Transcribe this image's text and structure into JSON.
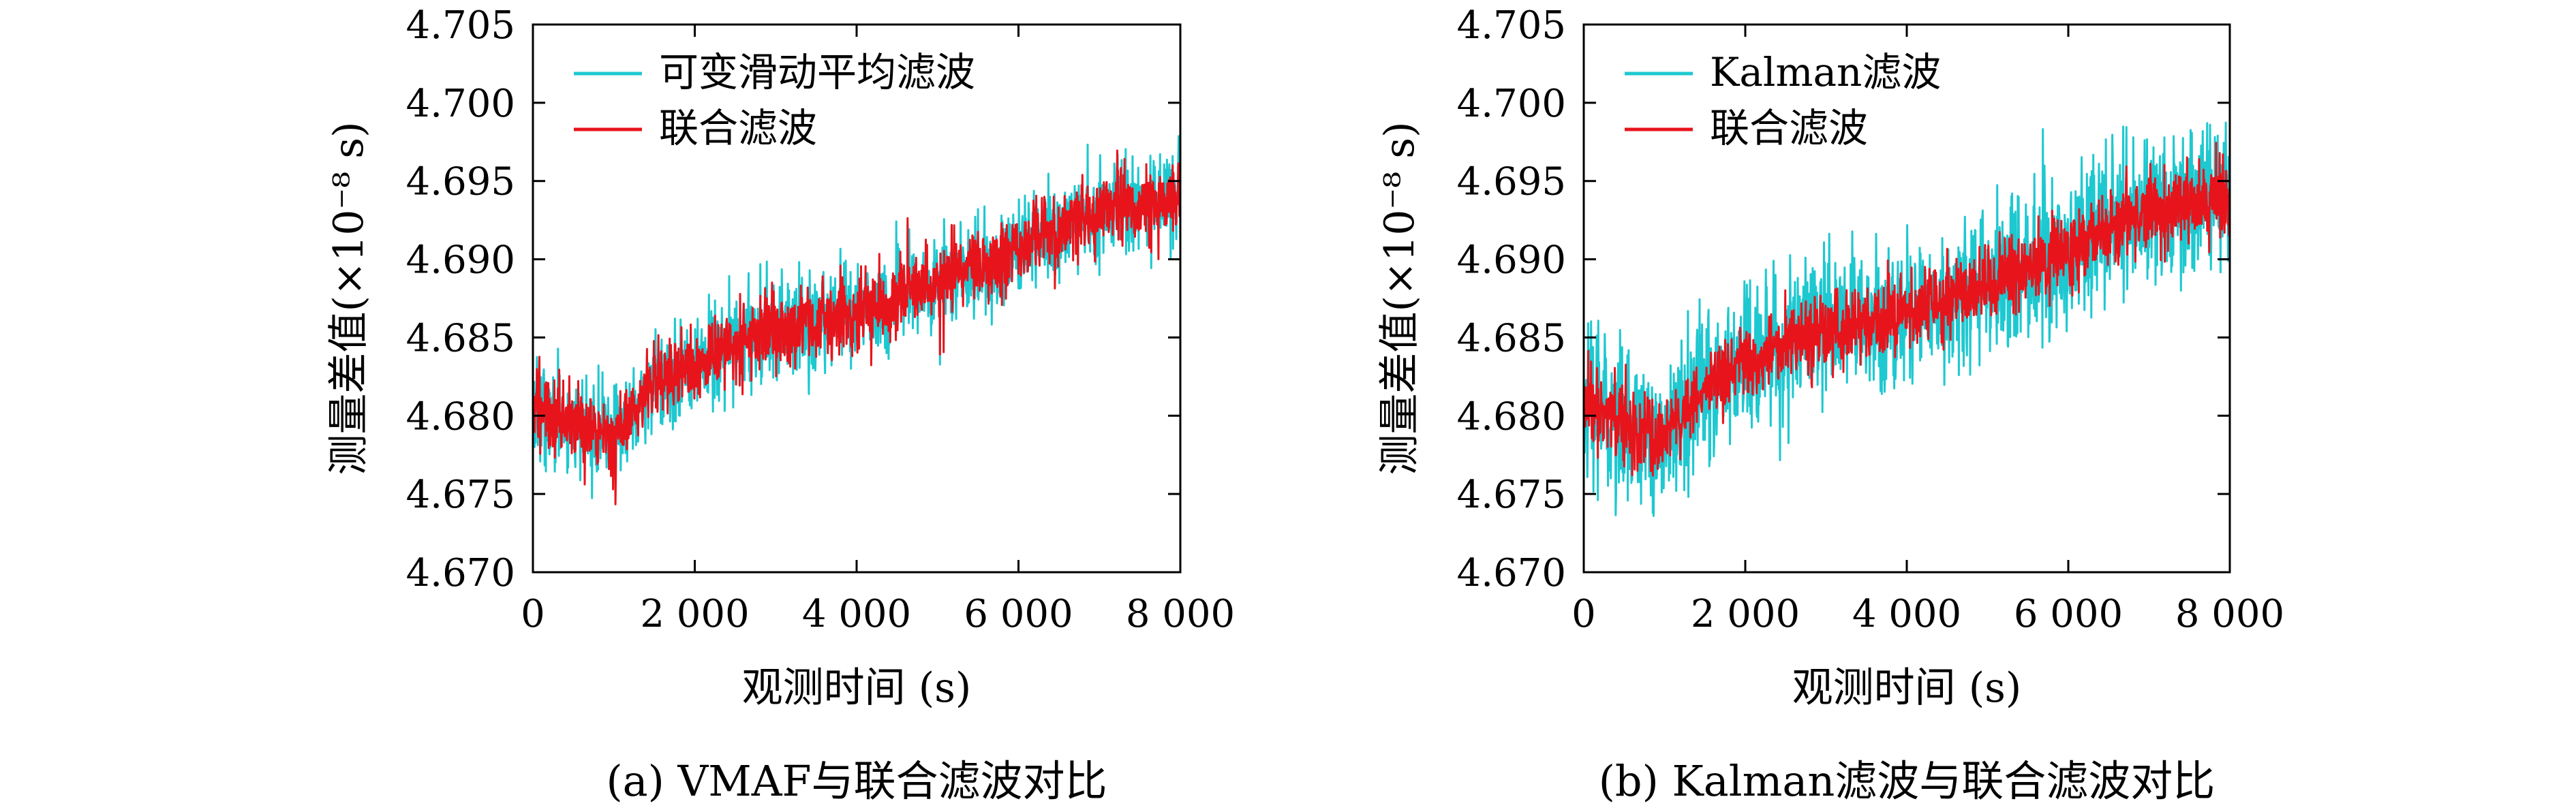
{
  "chart_data": [
    {
      "type": "line",
      "caption": "(a) VMAF与联合滤波对比",
      "xlabel": "观测时间 (s)",
      "ylabel": "测量差值(×10⁻⁸ s)",
      "xlim": [
        0,
        8000
      ],
      "ylim": [
        4.67,
        4.705
      ],
      "xticks": [
        0,
        2000,
        4000,
        6000,
        8000
      ],
      "xtick_labels": [
        "0",
        "2 000",
        "4 000",
        "6 000",
        "8 000"
      ],
      "yticks": [
        4.67,
        4.675,
        4.68,
        4.685,
        4.69,
        4.695,
        4.7,
        4.705
      ],
      "ytick_labels": [
        "4.670",
        "4.675",
        "4.680",
        "4.685",
        "4.690",
        "4.695",
        "4.700",
        "4.705"
      ],
      "grid": false,
      "legend_position": "top-left",
      "series": [
        {
          "name": "可变滑动平均滤波",
          "color": "#1ec8d0",
          "x": [
            0,
            500,
            1000,
            1500,
            2000,
            2500,
            3000,
            3500,
            4000,
            4500,
            5000,
            5500,
            6000,
            6500,
            7000,
            7500,
            8000
          ],
          "values": [
            4.6805,
            4.6795,
            4.6785,
            4.682,
            4.6835,
            4.6845,
            4.6855,
            4.686,
            4.6865,
            4.6875,
            4.6885,
            4.6895,
            4.6905,
            4.692,
            4.693,
            4.6935,
            4.694
          ],
          "noise": 0.0022
        },
        {
          "name": "联合滤波",
          "color": "#e8141c",
          "x": [
            0,
            500,
            1000,
            1500,
            2000,
            2500,
            3000,
            3500,
            4000,
            4500,
            5000,
            5500,
            6000,
            6500,
            7000,
            7500,
            8000
          ],
          "values": [
            4.6805,
            4.6795,
            4.6785,
            4.682,
            4.6835,
            4.6845,
            4.6855,
            4.686,
            4.6865,
            4.6875,
            4.6885,
            4.6895,
            4.6905,
            4.692,
            4.693,
            4.6935,
            4.694
          ],
          "noise": 0.0014
        }
      ]
    },
    {
      "type": "line",
      "caption": "(b) Kalman滤波与联合滤波对比",
      "xlabel": "观测时间 (s)",
      "ylabel": "测量差值(×10⁻⁸ s)",
      "xlim": [
        0,
        8000
      ],
      "ylim": [
        4.67,
        4.705
      ],
      "xticks": [
        0,
        2000,
        4000,
        6000,
        8000
      ],
      "xtick_labels": [
        "0",
        "2 000",
        "4 000",
        "6 000",
        "8 000"
      ],
      "yticks": [
        4.67,
        4.675,
        4.68,
        4.685,
        4.69,
        4.695,
        4.7,
        4.705
      ],
      "ytick_labels": [
        "4.670",
        "4.675",
        "4.680",
        "4.685",
        "4.690",
        "4.695",
        "4.700",
        "4.705"
      ],
      "grid": false,
      "legend_position": "top-left",
      "series": [
        {
          "name": "Kalman滤波",
          "color": "#1ec8d0",
          "x": [
            0,
            500,
            1000,
            1500,
            2000,
            2500,
            3000,
            3500,
            4000,
            4500,
            5000,
            5500,
            6000,
            6500,
            7000,
            7500,
            8000
          ],
          "values": [
            4.6805,
            4.6795,
            4.6785,
            4.682,
            4.6835,
            4.6845,
            4.6855,
            4.686,
            4.6865,
            4.6875,
            4.6885,
            4.6895,
            4.6905,
            4.692,
            4.693,
            4.6935,
            4.694
          ],
          "noise": 0.004
        },
        {
          "name": "联合滤波",
          "color": "#e8141c",
          "x": [
            0,
            500,
            1000,
            1500,
            2000,
            2500,
            3000,
            3500,
            4000,
            4500,
            5000,
            5500,
            6000,
            6500,
            7000,
            7500,
            8000
          ],
          "values": [
            4.6805,
            4.6795,
            4.6785,
            4.682,
            4.6835,
            4.6845,
            4.6855,
            4.686,
            4.6865,
            4.6875,
            4.6885,
            4.6895,
            4.6905,
            4.692,
            4.693,
            4.6935,
            4.694
          ],
          "noise": 0.0014
        }
      ]
    }
  ]
}
